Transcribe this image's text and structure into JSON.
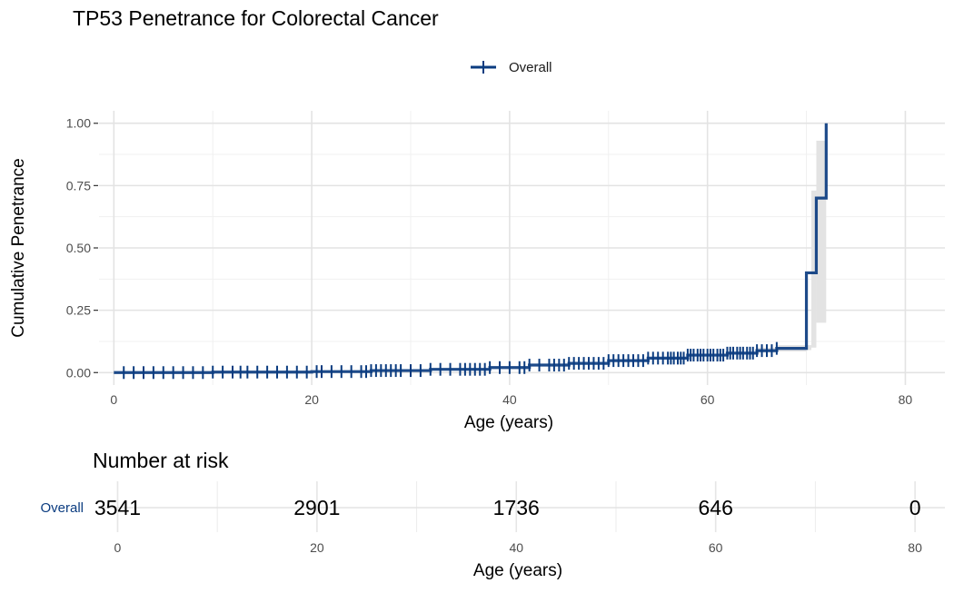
{
  "chart_data": [
    {
      "type": "line",
      "title": "TP53 Penetrance for Colorectal Cancer",
      "xlabel": "Age (years)",
      "ylabel": "Cumulative Penetrance",
      "xlim": [
        -1.5,
        84
      ],
      "ylim": [
        -0.05,
        1.05
      ],
      "x_ticks": [
        0,
        20,
        40,
        60,
        80
      ],
      "y_ticks": [
        0.0,
        0.25,
        0.5,
        0.75,
        1.0
      ],
      "y_tick_labels": [
        "0.00",
        "0.25",
        "0.50",
        "0.75",
        "1.00"
      ],
      "grid": true,
      "legend_position": "top",
      "legend": [
        {
          "name": "Overall",
          "color": "#0b3c80",
          "marker": "cross"
        }
      ],
      "series": [
        {
          "name": "Overall",
          "color": "#0b3c80",
          "step": true,
          "points": [
            [
              0,
              0
            ],
            [
              10,
              0.002
            ],
            [
              20,
              0.004
            ],
            [
              26,
              0.008
            ],
            [
              32,
              0.013
            ],
            [
              38,
              0.02
            ],
            [
              42,
              0.03
            ],
            [
              46,
              0.037
            ],
            [
              50,
              0.048
            ],
            [
              54,
              0.058
            ],
            [
              58,
              0.07
            ],
            [
              62,
              0.078
            ],
            [
              65,
              0.088
            ],
            [
              67,
              0.097
            ],
            [
              70,
              0.4
            ],
            [
              71,
              0.7
            ],
            [
              72,
              1.0
            ]
          ],
          "ci_band": [
            [
              65,
              0.08,
              0.1
            ],
            [
              67,
              0.085,
              0.11
            ],
            [
              70,
              0.09,
              0.11
            ],
            [
              70.5,
              0.1,
              0.73
            ],
            [
              71,
              0.2,
              0.93
            ],
            [
              72,
              0.2,
              0.93
            ]
          ],
          "censor_ages": [
            1,
            2,
            3,
            4,
            5,
            6,
            7,
            8,
            9,
            10,
            11,
            12,
            12.8,
            13.5,
            14.5,
            15.5,
            16.5,
            17.5,
            18.5,
            19.5,
            20.5,
            21,
            22,
            23,
            24,
            25,
            25.5,
            26,
            26.5,
            27,
            27.5,
            28,
            28.5,
            29,
            30,
            31,
            32,
            33,
            34,
            35,
            35.5,
            36,
            36.5,
            37,
            37.5,
            38,
            39,
            40,
            41,
            41.5,
            42,
            43,
            44,
            44.5,
            45,
            45.5,
            46,
            46.5,
            47,
            47.5,
            48,
            48.5,
            49,
            49.5,
            50,
            50.5,
            51,
            51.5,
            52,
            52.5,
            53,
            53.5,
            54,
            54.5,
            55,
            55.5,
            56,
            56.3,
            56.6,
            57,
            57.3,
            57.6,
            58,
            58.3,
            58.6,
            59,
            59.3,
            59.6,
            60,
            60.3,
            60.6,
            61,
            61.3,
            61.6,
            62,
            62.3,
            62.6,
            63,
            63.3,
            63.6,
            64,
            64.3,
            64.6,
            65,
            65.5,
            66,
            66.5,
            67
          ]
        }
      ]
    },
    {
      "type": "table",
      "title": "Number at risk",
      "xlabel": "Age (years)",
      "xlim": [
        -1.5,
        83
      ],
      "x_ticks": [
        0,
        20,
        40,
        60,
        80
      ],
      "rows": [
        {
          "label": "Overall",
          "color": "#0b3c80",
          "values": [
            3541,
            2901,
            1736,
            646,
            0
          ]
        }
      ]
    }
  ]
}
